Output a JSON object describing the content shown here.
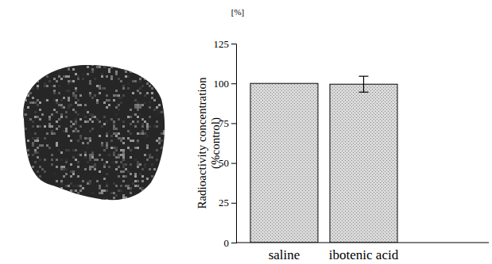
{
  "chart_data": {
    "type": "bar",
    "y_label": [
      "Radioactivity concentration",
      "(%control)"
    ],
    "annotations": [
      "[%]"
    ],
    "categories": [
      "saline",
      "ibotenic acid"
    ],
    "values": [
      100,
      99.5
    ],
    "errors": [
      null,
      5
    ],
    "color": "#d9d9d9",
    "ylim": [
      0,
      125
    ],
    "yticks": [
      0,
      25,
      50,
      75,
      100,
      125
    ]
  }
}
